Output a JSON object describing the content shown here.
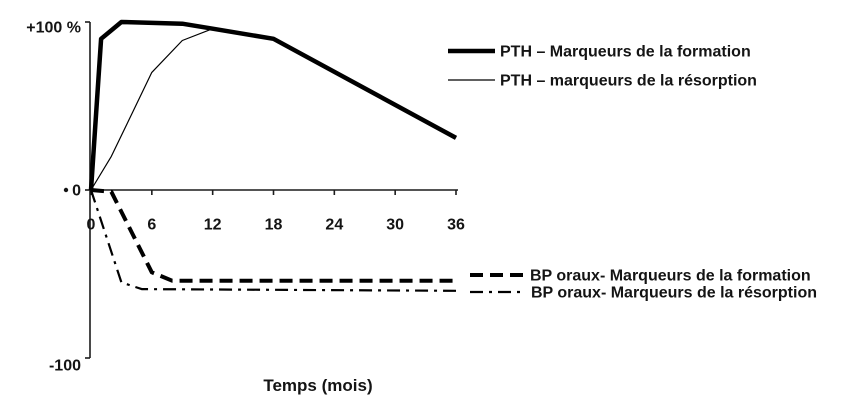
{
  "chart_data": {
    "type": "line",
    "xlabel": "Temps (mois)",
    "xlim": [
      0,
      36
    ],
    "ylim": [
      -100,
      100
    ],
    "x_ticks": [
      0,
      6,
      12,
      18,
      24,
      30,
      36
    ],
    "x_tick_labels": [
      "0",
      "6",
      "12",
      "18",
      "24",
      "30",
      "36"
    ],
    "y_ticks": [
      100,
      0,
      -100
    ],
    "y_tick_labels": [
      "+100 %",
      "0",
      "-100"
    ],
    "grid": false,
    "legend_position": "right",
    "series": [
      {
        "name": "PTH – Marqueurs de la formation",
        "line_style": "thick-solid",
        "color": "#000000",
        "x": [
          0,
          1,
          3,
          9,
          12,
          18,
          36
        ],
        "y": [
          0,
          90,
          100,
          99,
          96,
          90,
          31
        ]
      },
      {
        "name": "PTH – marqueurs de la résorption",
        "line_style": "thin-solid",
        "color": "#000000",
        "x": [
          0,
          2,
          4,
          6,
          9,
          12,
          18,
          36
        ],
        "y": [
          0,
          20,
          45,
          70,
          89,
          96,
          90,
          31
        ]
      },
      {
        "name": "BP oraux- Marqueurs de la formation",
        "line_style": "dashed",
        "color": "#000000",
        "x": [
          0,
          2,
          6,
          8,
          36
        ],
        "y": [
          0,
          -1,
          -49,
          -54,
          -54
        ]
      },
      {
        "name": "BP oraux- Marqueurs de la résorption",
        "line_style": "dash-dot",
        "color": "#000000",
        "x": [
          0,
          3,
          5,
          36
        ],
        "y": [
          0,
          -55,
          -59,
          -60
        ]
      }
    ]
  }
}
